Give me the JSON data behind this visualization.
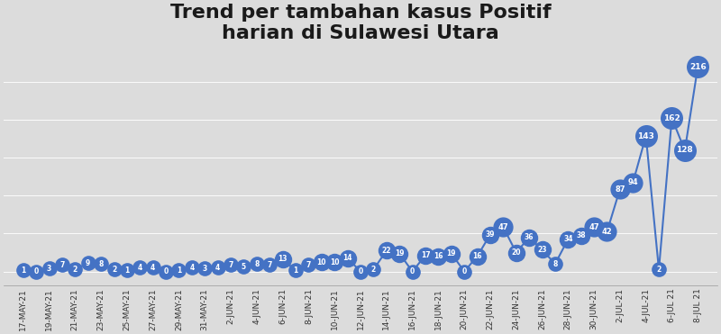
{
  "title": "Trend per tambahan kasus Positif\nharian di Sulawesi Utara",
  "all_values": [
    1,
    0,
    3,
    7,
    2,
    9,
    8,
    2,
    1,
    4,
    4,
    0,
    1,
    4,
    3,
    4,
    7,
    5,
    8,
    7,
    13,
    1,
    7,
    10,
    10,
    14,
    0,
    2,
    22,
    19,
    0,
    17,
    16,
    19,
    0,
    16,
    39,
    47,
    20,
    36,
    23,
    8,
    34,
    38,
    47,
    42,
    87,
    94,
    143,
    2,
    162,
    128,
    216
  ],
  "tick_labels": [
    "17-MAY-21",
    "19-MAY-21",
    "21-MAY-21",
    "23-MAY-21",
    "25-MAY-21",
    "27-MAY-21",
    "29-MAY-21",
    "31-MAY-21",
    "2-JUN-21",
    "4-JUN-21",
    "6-JUN-21",
    "8-JUN-21",
    "10-JUN-21",
    "12-JUN-21",
    "14-JUN-21",
    "16-JUN-21",
    "18-JUN-21",
    "20-JUN-21",
    "22-JUN-21",
    "24-JUN-21",
    "26-JUN-21",
    "28-JUN-21",
    "30-JUN-21",
    "2-JUL-21",
    "4-JUL-21",
    "6-JUL 21",
    "8-JUL 21"
  ],
  "line_color": "#4472C4",
  "marker_color": "#4472C4",
  "bg_top": "#D8D8D8",
  "bg_bottom": "#C8C8C8",
  "text_color": "#FFFFFF",
  "title_fontsize": 16,
  "axis_label_fontsize": 6.5
}
